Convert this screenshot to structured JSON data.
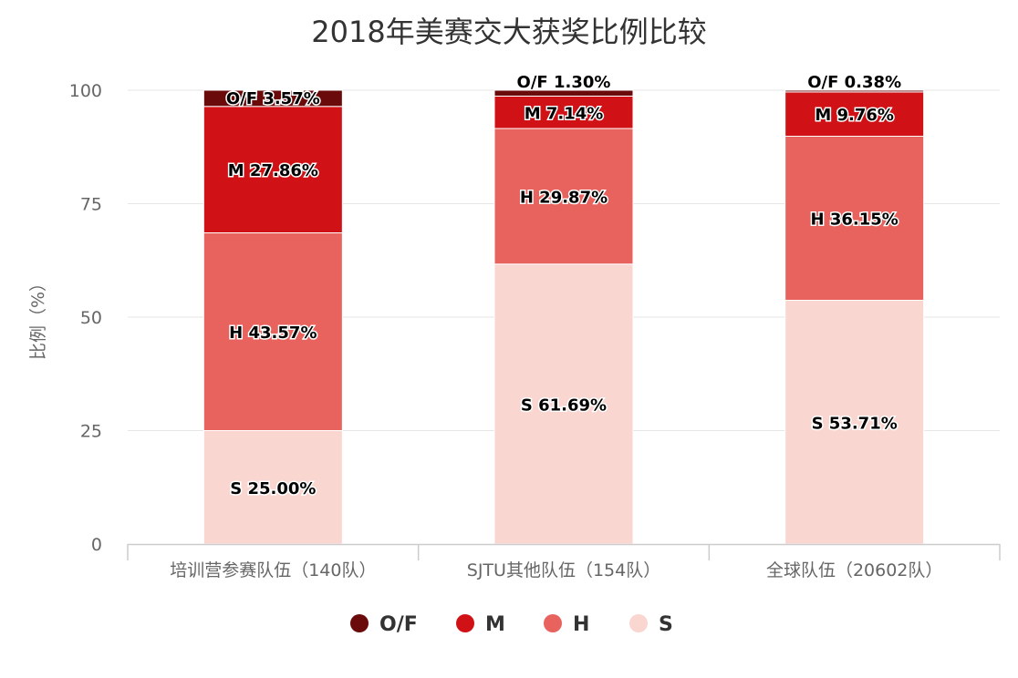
{
  "chart_data": {
    "type": "bar",
    "stacked": true,
    "title": "2018年美赛交大获奖比例比较",
    "ylabel": "比例（%）",
    "xlabel": "",
    "ylim": [
      0,
      100
    ],
    "yticks": [
      0,
      25,
      50,
      75,
      100
    ],
    "grid": true,
    "legend_position": "bottom",
    "categories": [
      "培训营参赛队伍（140队）",
      "SJTU其他队伍（154队）",
      "全球队伍（20602队）"
    ],
    "series": [
      {
        "name": "S",
        "color": "#f9d6d0",
        "values": [
          25.0,
          61.69,
          53.71
        ],
        "labels": [
          "S 25.00%",
          "S 61.69%",
          "S 53.71%"
        ]
      },
      {
        "name": "H",
        "color": "#e8625e",
        "values": [
          43.57,
          29.87,
          36.15
        ],
        "labels": [
          "H 43.57%",
          "H 29.87%",
          "H 36.15%"
        ]
      },
      {
        "name": "M",
        "color": "#d01217",
        "values": [
          27.86,
          7.14,
          9.76
        ],
        "labels": [
          "M 27.86%",
          "M 7.14%",
          "M 9.76%"
        ]
      },
      {
        "name": "O/F",
        "color": "#6b0a0a",
        "values": [
          3.57,
          1.3,
          0.38
        ],
        "labels": [
          "O/F 3.57%",
          "O/F 1.30%",
          "O/F 0.38%"
        ]
      }
    ],
    "legend_order": [
      "O/F",
      "M",
      "H",
      "S"
    ]
  }
}
